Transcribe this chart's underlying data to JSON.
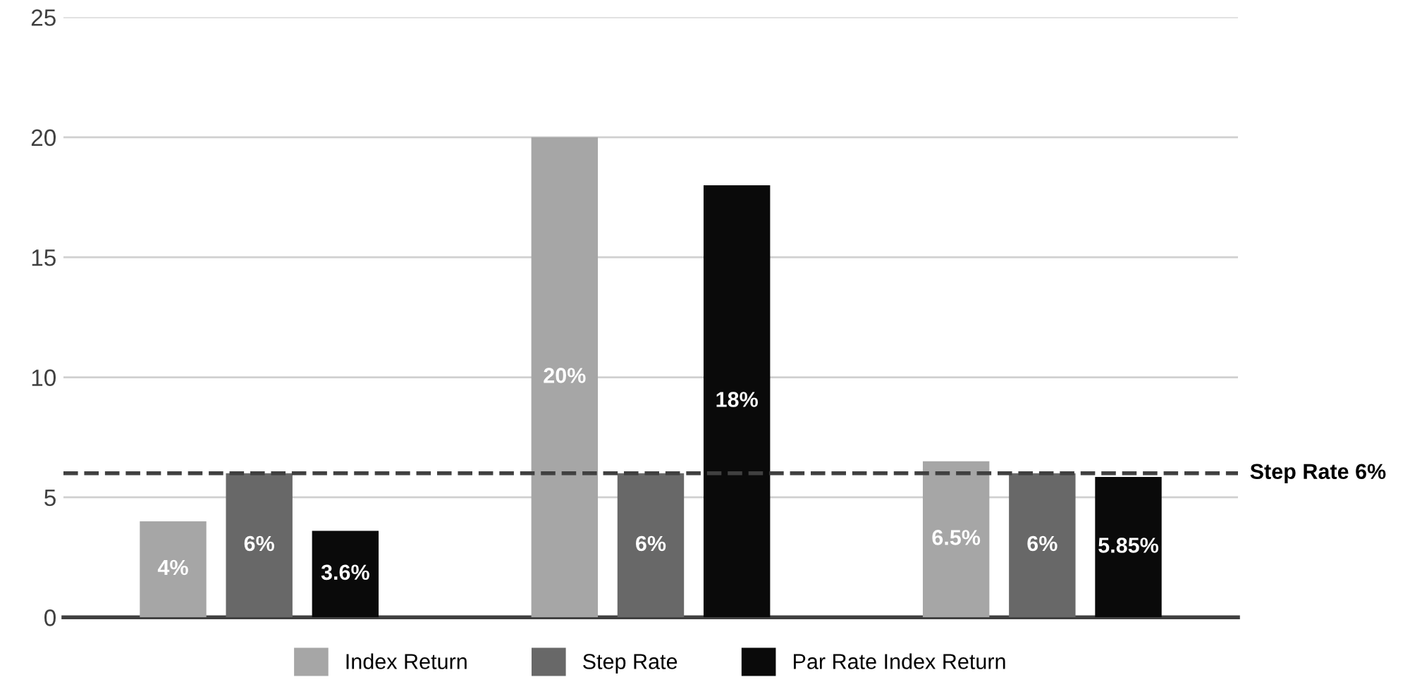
{
  "chart_data": {
    "type": "bar",
    "categories": [
      null,
      null,
      null
    ],
    "series": [
      {
        "name": "Index Return",
        "color": "#a6a6a6",
        "values": [
          4,
          20,
          6.5
        ],
        "value_labels": [
          "4%",
          "20%",
          "6.5%"
        ]
      },
      {
        "name": "Step Rate",
        "color": "#686868",
        "values": [
          6,
          6,
          6
        ],
        "value_labels": [
          "6%",
          "6%",
          "6%"
        ]
      },
      {
        "name": "Par Rate Index Return",
        "color": "#0a0a0a",
        "values": [
          3.6,
          18,
          5.85
        ],
        "value_labels": [
          "3.6%",
          "18%",
          "5.85%"
        ]
      }
    ],
    "ylim": [
      0,
      25
    ],
    "yticks": [
      0,
      5,
      10,
      15,
      20,
      25
    ],
    "grid": "y",
    "legend": "bottom",
    "ref_lines": [
      {
        "axis": "y",
        "value": 6,
        "label": "Step Rate 6%",
        "color": "#404040",
        "line_style": "dashed"
      }
    ]
  }
}
